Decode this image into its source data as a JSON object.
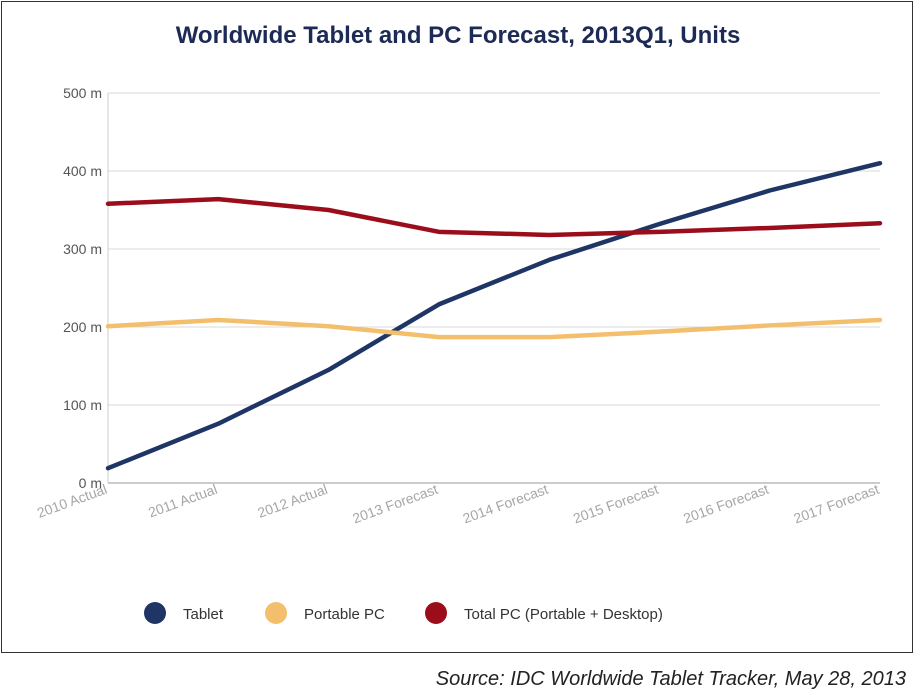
{
  "chart_data": {
    "type": "line",
    "title": "Worldwide Tablet and PC Forecast, 2013Q1, Units",
    "categories": [
      "2010 Actual",
      "2011 Actual",
      "2012 Actual",
      "2013 Forecast",
      "2014 Forecast",
      "2015 Forecast",
      "2016 Forecast",
      "2017 Forecast"
    ],
    "y_tick_labels": [
      "0 m",
      "100 m",
      "200 m",
      "300 m",
      "400 m",
      "500 m"
    ],
    "y_ticks": [
      0,
      100,
      200,
      300,
      400,
      500
    ],
    "ylim": [
      0,
      500
    ],
    "xlabel": "",
    "ylabel": "",
    "legend_position": "bottom",
    "series": [
      {
        "name": "Tablet",
        "color": "#1f3566",
        "values": [
          19,
          76,
          145,
          229,
          286,
          332,
          375,
          410
        ]
      },
      {
        "name": "Portable PC",
        "color": "#f3bf6d",
        "values": [
          201,
          209,
          201,
          187,
          187,
          194,
          202,
          209
        ]
      },
      {
        "name": "Total PC (Portable + Desktop)",
        "color": "#9c0d1b",
        "values": [
          358,
          364,
          350,
          322,
          318,
          322,
          327,
          333
        ]
      }
    ]
  },
  "source": "Source: IDC Worldwide Tablet Tracker, May 28, 2013"
}
